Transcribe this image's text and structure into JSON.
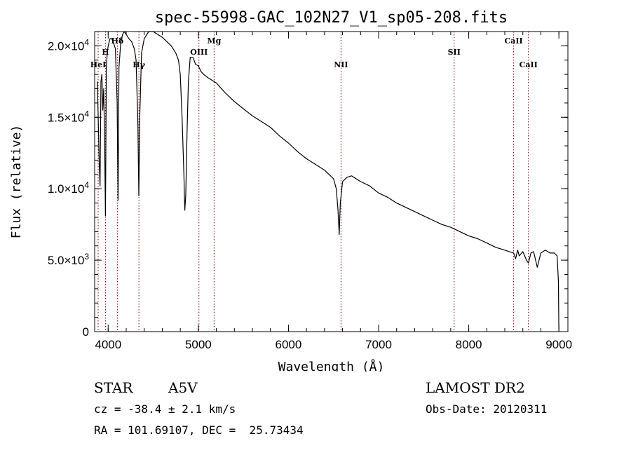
{
  "chart_data": {
    "type": "line",
    "title": "spec-55998-GAC_102N27_V1_sp05-208.fits",
    "xlabel": "Wavelength (Å)",
    "ylabel": "Flux (relative)",
    "xlim": [
      3850,
      9100
    ],
    "ylim": [
      0,
      21000
    ],
    "x_ticks": [
      4000,
      5000,
      6000,
      7000,
      8000,
      9000
    ],
    "y_ticks": [
      {
        "value": 0,
        "mant": "0",
        "exp": ""
      },
      {
        "value": 5000,
        "mant": "5.0×10",
        "exp": "3"
      },
      {
        "value": 10000,
        "mant": "1.0×10",
        "exp": "4"
      },
      {
        "value": 15000,
        "mant": "1.5×10",
        "exp": "4"
      },
      {
        "value": 20000,
        "mant": "2.0×10",
        "exp": "4"
      }
    ],
    "grid": false,
    "series": [
      {
        "x": [
          3880,
          3900,
          3910,
          3920,
          3930,
          3940,
          3950,
          3960,
          3970,
          3980,
          3990,
          4000,
          4020,
          4040,
          4060,
          4080,
          4100,
          4110,
          4120,
          4140,
          4160,
          4180,
          4200,
          4230,
          4260,
          4290,
          4310,
          4330,
          4340,
          4350,
          4370,
          4400,
          4450,
          4500,
          4550,
          4600,
          4650,
          4700,
          4750,
          4780,
          4800,
          4820,
          4840,
          4850,
          4861,
          4875,
          4890,
          4910,
          4940,
          4970,
          5000,
          5030,
          5060,
          5100,
          5150,
          5200,
          5300,
          5400,
          5500,
          5600,
          5700,
          5800,
          5900,
          6000,
          6100,
          6200,
          6300,
          6400,
          6450,
          6500,
          6530,
          6550,
          6563,
          6575,
          6600,
          6650,
          6700,
          6800,
          6900,
          7000,
          7100,
          7200,
          7300,
          7400,
          7500,
          7600,
          7700,
          7800,
          7900,
          8000,
          8100,
          8200,
          8300,
          8400,
          8450,
          8498,
          8520,
          8542,
          8560,
          8600,
          8640,
          8662,
          8690,
          8720,
          8760,
          8800,
          8850,
          8900,
          8950,
          8980,
          8995,
          9000
        ],
        "y": [
          17500,
          12000,
          10200,
          17500,
          18000,
          15500,
          17000,
          13800,
          8100,
          18500,
          19500,
          20000,
          20500,
          20500,
          20200,
          19800,
          16000,
          9200,
          18500,
          20300,
          20800,
          21000,
          20800,
          20500,
          20300,
          19800,
          19000,
          14500,
          9500,
          15000,
          19500,
          20500,
          21000,
          21000,
          20800,
          20600,
          20300,
          20000,
          19500,
          19000,
          18000,
          15000,
          11000,
          8500,
          9600,
          14000,
          17500,
          19200,
          19200,
          18700,
          18600,
          18200,
          18000,
          17800,
          17600,
          17400,
          16700,
          16100,
          15600,
          15100,
          14700,
          14300,
          13700,
          13200,
          12600,
          12100,
          11700,
          11300,
          11000,
          10700,
          10000,
          8500,
          6800,
          9000,
          10500,
          10800,
          10900,
          10500,
          10200,
          9700,
          9400,
          9000,
          8700,
          8400,
          8100,
          7800,
          7500,
          7300,
          7000,
          6700,
          6500,
          6200,
          5900,
          5700,
          5600,
          5500,
          5100,
          5700,
          5300,
          5600,
          5000,
          4800,
          5500,
          5600,
          4500,
          5500,
          5700,
          5500,
          5500,
          5300,
          3500,
          200
        ]
      }
    ],
    "lines": [
      {
        "x": 3889,
        "label": "HeI",
        "tier": 3
      },
      {
        "x": 3970,
        "label": "H",
        "tier": 2
      },
      {
        "x": 4102,
        "label": "Hδ",
        "tier": 1
      },
      {
        "x": 4341,
        "label": "Hγ",
        "tier": 3
      },
      {
        "x": 5007,
        "label": "OIII",
        "tier": 2
      },
      {
        "x": 5175,
        "label": "Mg",
        "tier": 1
      },
      {
        "x": 6583,
        "label": "NII",
        "tier": 3
      },
      {
        "x": 7838,
        "label": "SII",
        "tier": 2
      },
      {
        "x": 8498,
        "label": "CaII",
        "tier": 1
      },
      {
        "x": 8662,
        "label": "CaII",
        "tier": 3
      }
    ],
    "line_color": "#8b0000"
  },
  "info": {
    "object_class": "STAR",
    "subclass": "A5V",
    "survey": "LAMOST DR2",
    "cz": "cz = -38.4 ± 2.1 km/s",
    "obs_date": "Obs-Date: 20120311",
    "coords": "RA = 101.69107, DEC =  25.73434"
  }
}
